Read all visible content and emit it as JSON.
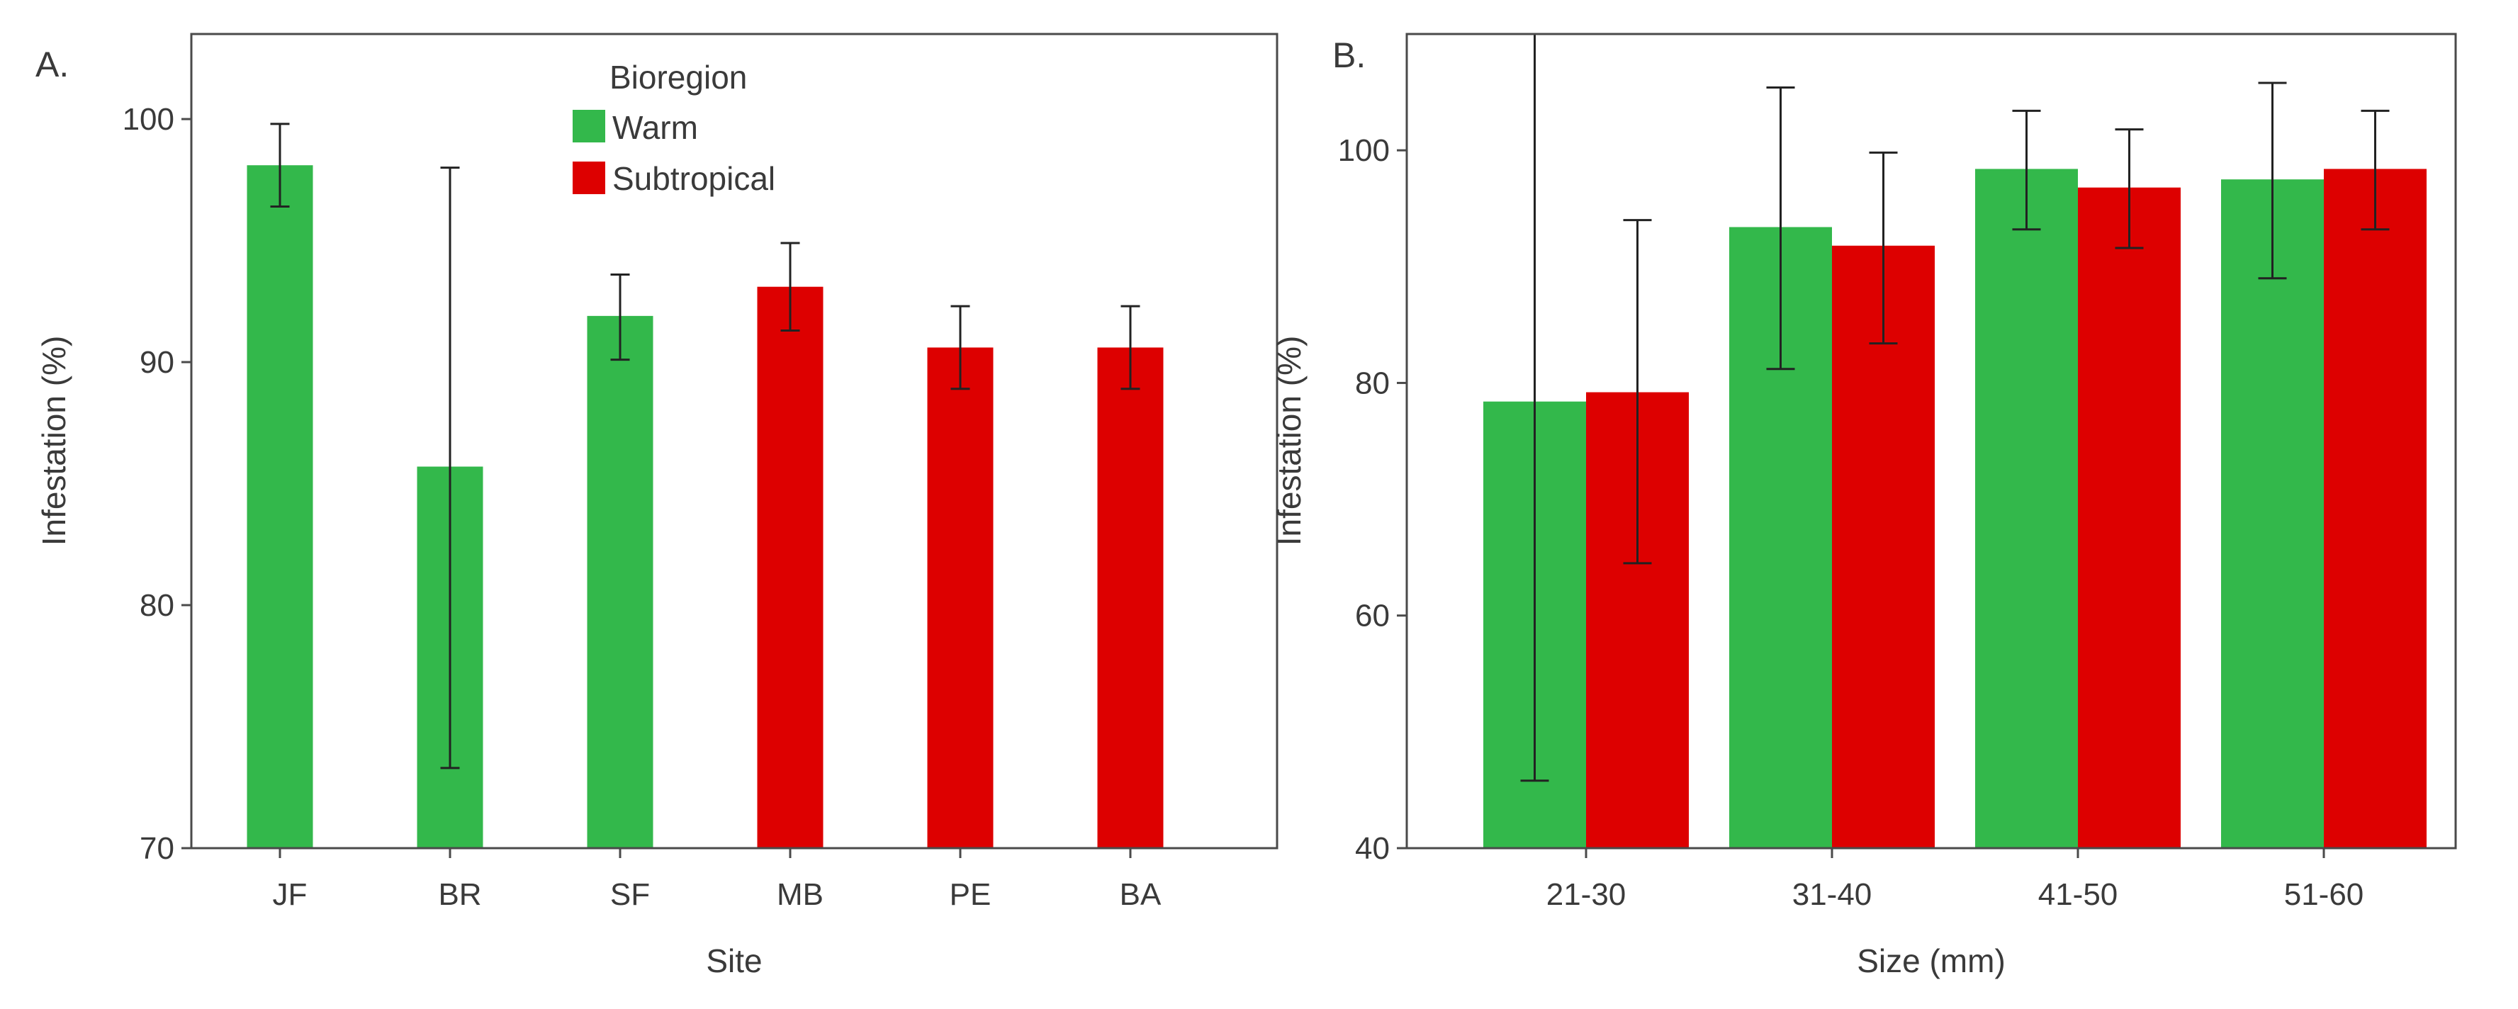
{
  "colors": {
    "warm": "#33b84b",
    "subtropical": "#dd0000",
    "axis": "#4a4a4a",
    "text": "#3a3a3a"
  },
  "chart_data": [
    {
      "panel": "A.",
      "type": "bar",
      "xlabel": "Site",
      "ylabel": "Infestation (%)",
      "ylim": [
        70,
        103.5
      ],
      "yticks": [
        70,
        80,
        90,
        100
      ],
      "categories": [
        "JF",
        "BR",
        "SF",
        "MB",
        "PE",
        "BA"
      ],
      "legend": {
        "title": "Bioregion",
        "position": "top-center",
        "entries": [
          {
            "label": "Warm",
            "color_key": "warm"
          },
          {
            "label": "Subtropical",
            "color_key": "subtropical"
          }
        ]
      },
      "bars": [
        {
          "category": "JF",
          "group": "Warm",
          "value": 98.1,
          "err_low": 96.4,
          "err_high": 99.8
        },
        {
          "category": "BR",
          "group": "Warm",
          "value": 85.7,
          "err_low": 73.3,
          "err_high": 98.0
        },
        {
          "category": "SF",
          "group": "Warm",
          "value": 91.9,
          "err_low": 90.1,
          "err_high": 93.6
        },
        {
          "category": "MB",
          "group": "Subtropical",
          "value": 93.1,
          "err_low": 91.3,
          "err_high": 94.9
        },
        {
          "category": "PE",
          "group": "Subtropical",
          "value": 90.6,
          "err_low": 88.9,
          "err_high": 92.3
        },
        {
          "category": "BA",
          "group": "Subtropical",
          "value": 90.6,
          "err_low": 88.9,
          "err_high": 92.3
        }
      ]
    },
    {
      "panel": "B.",
      "type": "bar",
      "xlabel": "Size (mm)",
      "ylabel": "Infestation (%)",
      "ylim": [
        40,
        110
      ],
      "yticks": [
        40,
        60,
        80,
        100
      ],
      "categories": [
        "21-30",
        "31-40",
        "41-50",
        "51-60"
      ],
      "series": [
        {
          "name": "Warm",
          "color_key": "warm",
          "values": [
            78.4,
            93.4,
            98.4,
            97.5
          ],
          "err_low": [
            45.8,
            81.2,
            93.2,
            89.0
          ],
          "err_high": [
            110.0,
            105.4,
            103.4,
            105.8
          ]
        },
        {
          "name": "Subtropical",
          "color_key": "subtropical",
          "values": [
            79.2,
            91.8,
            96.8,
            98.4
          ],
          "err_low": [
            64.5,
            83.4,
            91.6,
            93.2
          ],
          "err_high": [
            94.0,
            99.8,
            101.8,
            103.4
          ]
        }
      ]
    }
  ]
}
